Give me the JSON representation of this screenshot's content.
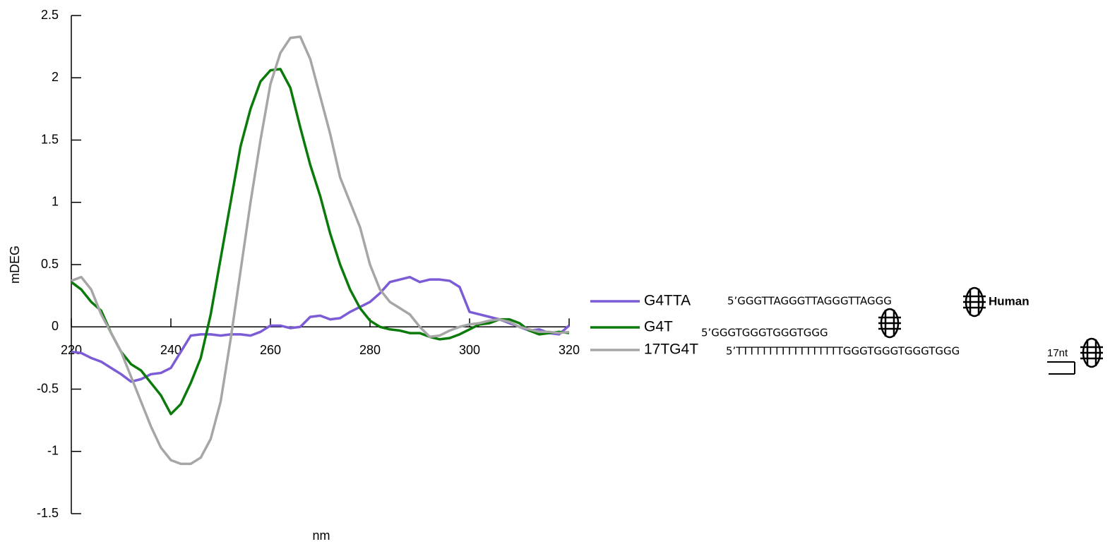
{
  "chart_data": {
    "type": "line",
    "x_label": "nm",
    "y_label": "mDEG",
    "xlim": [
      220,
      320
    ],
    "xticks": [
      220,
      240,
      260,
      280,
      300,
      320
    ],
    "ylim": [
      -1.5,
      2.5
    ],
    "yticks": [
      -1.5,
      -1,
      -0.5,
      0,
      0.5,
      1,
      1.5,
      2,
      2.5
    ],
    "x": [
      220,
      222,
      224,
      226,
      228,
      230,
      232,
      234,
      236,
      238,
      240,
      242,
      244,
      246,
      248,
      250,
      252,
      254,
      256,
      258,
      260,
      262,
      264,
      266,
      268,
      270,
      272,
      274,
      276,
      278,
      280,
      282,
      284,
      286,
      288,
      290,
      292,
      294,
      296,
      298,
      300,
      302,
      304,
      306,
      308,
      310,
      312,
      314,
      316,
      318,
      320
    ],
    "series": [
      {
        "name": "G4TTA",
        "color": "#7b5bd6",
        "sequence": "5’GGGTTAGGGTTAGGGTTAGGG",
        "values": [
          -0.2,
          -0.21,
          -0.25,
          -0.28,
          -0.33,
          -0.38,
          -0.44,
          -0.42,
          -0.38,
          -0.37,
          -0.33,
          -0.2,
          -0.07,
          -0.06,
          -0.06,
          -0.07,
          -0.06,
          -0.06,
          -0.07,
          -0.04,
          0.01,
          0.01,
          -0.01,
          0.0,
          0.08,
          0.09,
          0.06,
          0.07,
          0.12,
          0.16,
          0.2,
          0.27,
          0.36,
          0.38,
          0.4,
          0.36,
          0.38,
          0.38,
          0.37,
          0.32,
          0.12,
          0.1,
          0.08,
          0.06,
          0.03,
          0.0,
          -0.03,
          -0.02,
          -0.05,
          -0.06,
          0.01
        ]
      },
      {
        "name": "G4T",
        "color": "#0a7a0a",
        "sequence": "5’GGGTGGGTGGGTGGG",
        "values": [
          0.36,
          0.3,
          0.2,
          0.13,
          -0.05,
          -0.2,
          -0.3,
          -0.35,
          -0.45,
          -0.55,
          -0.7,
          -0.62,
          -0.45,
          -0.25,
          0.1,
          0.55,
          1.0,
          1.45,
          1.75,
          1.97,
          2.06,
          2.07,
          1.92,
          1.6,
          1.3,
          1.05,
          0.75,
          0.5,
          0.3,
          0.15,
          0.05,
          0.0,
          -0.02,
          -0.03,
          -0.05,
          -0.05,
          -0.08,
          -0.1,
          -0.09,
          -0.06,
          -0.02,
          0.02,
          0.03,
          0.06,
          0.06,
          0.03,
          -0.03,
          -0.06,
          -0.05,
          -0.04,
          -0.05
        ]
      },
      {
        "name": "17TG4T",
        "color": "#a6a6a6",
        "sequence": "5’TTTTTTTTTTTTTTTTTGGGTGGGTGGGTGGG",
        "values": [
          0.37,
          0.4,
          0.3,
          0.1,
          -0.05,
          -0.2,
          -0.4,
          -0.6,
          -0.8,
          -0.97,
          -1.07,
          -1.1,
          -1.1,
          -1.05,
          -0.9,
          -0.6,
          -0.1,
          0.45,
          1.0,
          1.5,
          1.95,
          2.2,
          2.32,
          2.33,
          2.15,
          1.85,
          1.55,
          1.2,
          1.0,
          0.8,
          0.5,
          0.3,
          0.2,
          0.15,
          0.1,
          0.0,
          -0.08,
          -0.07,
          -0.03,
          0.0,
          0.02,
          0.03,
          0.05,
          0.06,
          0.04,
          0.0,
          -0.02,
          -0.04,
          -0.04,
          -0.05,
          -0.04
        ]
      }
    ],
    "annotations": [
      "Human",
      "17nt"
    ]
  }
}
